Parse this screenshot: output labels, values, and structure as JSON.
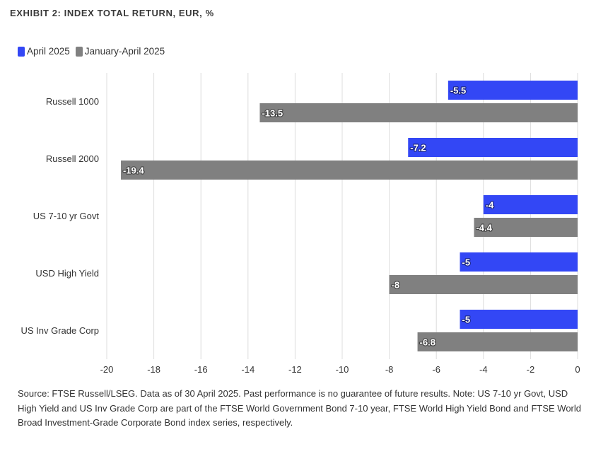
{
  "title": "EXHIBIT 2: INDEX TOTAL RETURN, EUR, %",
  "source_note": "Source: FTSE Russell/LSEG. Data as of 30 April 2025. Past performance is no guarantee of future results. Note: US 7-10 yr Govt, USD High Yield and US Inv Grade Corp are part of the FTSE World Government Bond 7-10 year, FTSE World High Yield Bond and FTSE World Broad Investment-Grade Corporate Bond index series, respectively.",
  "chart_data": {
    "type": "bar",
    "orientation": "horizontal",
    "title": "EXHIBIT 2: INDEX TOTAL RETURN, EUR, %",
    "xlabel": "",
    "ylabel": "",
    "xlim": [
      -20,
      0
    ],
    "xticks": [
      "-20",
      "-18",
      "-16",
      "-14",
      "-12",
      "-10",
      "-8",
      "-6",
      "-4",
      "-2",
      "0"
    ],
    "categories": [
      "Russell 1000",
      "Russell 2000",
      "US 7-10 yr Govt",
      "USD High Yield",
      "US Inv Grade Corp"
    ],
    "series": [
      {
        "name": "April 2025",
        "color": "#3347f5",
        "values": [
          -5.5,
          -7.2,
          -4,
          -5,
          -5
        ]
      },
      {
        "name": "January-April 2025",
        "color": "#808080",
        "values": [
          -13.5,
          -19.4,
          -4.4,
          -8,
          -6.8
        ]
      }
    ],
    "grid": "vertical",
    "legend_position": "top-left",
    "data_labels": true
  }
}
